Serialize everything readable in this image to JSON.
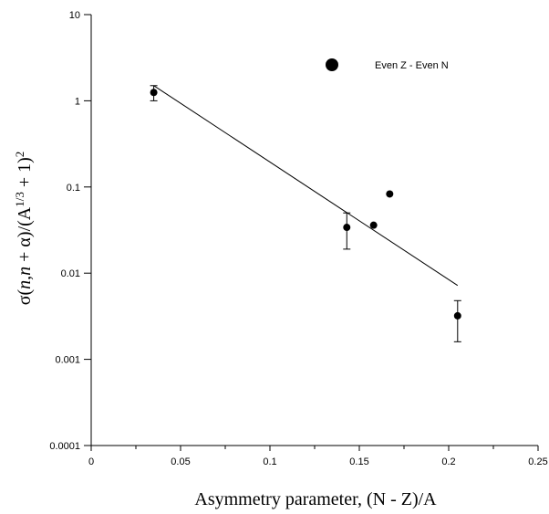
{
  "chart_data": {
    "type": "scatter",
    "xlabel": "Asymmetry parameter, (N - Z)/A",
    "ylabel": "σ(n,n + α)/(A^1/3 + 1)^2",
    "xlim": [
      0,
      0.25
    ],
    "ylim": [
      0.0001,
      10
    ],
    "y_scale": "log",
    "grid": false,
    "legend_position": "top-right",
    "x_ticks": [
      "0",
      "0.05",
      "0.1",
      "0.15",
      "0.2",
      "0.25"
    ],
    "y_ticks": [
      "0.0001",
      "0.001",
      "0.01",
      "0.1",
      "1",
      "10"
    ],
    "series": [
      {
        "name": "Even Z - Even N",
        "marker": "filled-circle",
        "color": "#000000",
        "points": [
          {
            "x": 0.035,
            "y": 1.25,
            "err_low": 1.0,
            "err_high": 1.5
          },
          {
            "x": 0.143,
            "y": 0.034,
            "err_low": 0.019,
            "err_high": 0.05
          },
          {
            "x": 0.158,
            "y": 0.036
          },
          {
            "x": 0.167,
            "y": 0.083
          },
          {
            "x": 0.205,
            "y": 0.0032,
            "err_low": 0.0016,
            "err_high": 0.0048
          }
        ]
      }
    ],
    "fit_line": {
      "x": [
        0.035,
        0.205
      ],
      "y": [
        1.5,
        0.0072
      ],
      "color": "#000000"
    }
  }
}
